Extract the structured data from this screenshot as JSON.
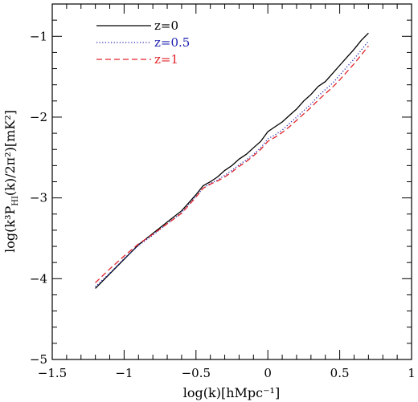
{
  "chart_data": {
    "type": "line",
    "title": "",
    "xlabel": "log(k)[hMpc⁻¹]",
    "ylabel": "log(k³P_HI(k)/2π²)[mK²]",
    "xlim": [
      -1.5,
      1.0
    ],
    "ylim": [
      -5.0,
      -0.6
    ],
    "xticks": [
      -1.5,
      -1.0,
      -0.5,
      0.0,
      0.5,
      1.0
    ],
    "xtick_labels": [
      "−1.5",
      "−1",
      "−0.5",
      "0",
      "0.5",
      "1"
    ],
    "yticks": [
      -5,
      -4,
      -3,
      -2,
      -1
    ],
    "ytick_labels": [
      "−5",
      "−4",
      "−3",
      "−2",
      "−1"
    ],
    "grid": false,
    "legend_position": "top-left",
    "series": [
      {
        "name": "z=0",
        "color": "#000000",
        "style": "solid",
        "x": [
          -1.2,
          -1.1,
          -1.0,
          -0.9,
          -0.8,
          -0.7,
          -0.6,
          -0.55,
          -0.5,
          -0.45,
          -0.4,
          -0.35,
          -0.3,
          -0.25,
          -0.2,
          -0.15,
          -0.1,
          -0.05,
          0.0,
          0.05,
          0.1,
          0.15,
          0.2,
          0.25,
          0.3,
          0.35,
          0.4,
          0.45,
          0.5,
          0.55,
          0.6,
          0.65,
          0.7
        ],
        "y": [
          -4.12,
          -3.94,
          -3.76,
          -3.58,
          -3.44,
          -3.3,
          -3.16,
          -3.06,
          -2.96,
          -2.85,
          -2.8,
          -2.74,
          -2.66,
          -2.6,
          -2.52,
          -2.46,
          -2.38,
          -2.3,
          -2.18,
          -2.12,
          -2.06,
          -1.98,
          -1.9,
          -1.8,
          -1.72,
          -1.62,
          -1.56,
          -1.46,
          -1.36,
          -1.26,
          -1.16,
          -1.05,
          -0.96
        ]
      },
      {
        "name": "z=0.5",
        "color": "#1f24b0",
        "style": "dotted",
        "x": [
          -1.2,
          -1.1,
          -1.0,
          -0.9,
          -0.8,
          -0.7,
          -0.6,
          -0.55,
          -0.5,
          -0.45,
          -0.4,
          -0.35,
          -0.3,
          -0.25,
          -0.2,
          -0.15,
          -0.1,
          -0.05,
          0.0,
          0.05,
          0.1,
          0.15,
          0.2,
          0.25,
          0.3,
          0.35,
          0.4,
          0.45,
          0.5,
          0.55,
          0.6,
          0.65,
          0.7
        ],
        "y": [
          -4.1,
          -3.93,
          -3.75,
          -3.59,
          -3.46,
          -3.32,
          -3.18,
          -3.08,
          -2.98,
          -2.88,
          -2.82,
          -2.78,
          -2.72,
          -2.66,
          -2.59,
          -2.53,
          -2.46,
          -2.38,
          -2.27,
          -2.22,
          -2.16,
          -2.08,
          -2.0,
          -1.92,
          -1.84,
          -1.74,
          -1.66,
          -1.58,
          -1.48,
          -1.38,
          -1.28,
          -1.17,
          -1.06
        ]
      },
      {
        "name": "z=1",
        "color": "#e0242a",
        "style": "dashed",
        "x": [
          -1.2,
          -1.1,
          -1.0,
          -0.9,
          -0.8,
          -0.7,
          -0.6,
          -0.55,
          -0.5,
          -0.45,
          -0.4,
          -0.35,
          -0.3,
          -0.25,
          -0.2,
          -0.15,
          -0.1,
          -0.05,
          0.0,
          0.05,
          0.1,
          0.15,
          0.2,
          0.25,
          0.3,
          0.35,
          0.4,
          0.45,
          0.5,
          0.55,
          0.6,
          0.65,
          0.7
        ],
        "y": [
          -4.05,
          -3.88,
          -3.72,
          -3.57,
          -3.45,
          -3.32,
          -3.19,
          -3.09,
          -2.99,
          -2.88,
          -2.83,
          -2.79,
          -2.74,
          -2.68,
          -2.61,
          -2.55,
          -2.48,
          -2.4,
          -2.3,
          -2.25,
          -2.19,
          -2.12,
          -2.04,
          -1.96,
          -1.88,
          -1.79,
          -1.71,
          -1.63,
          -1.54,
          -1.44,
          -1.34,
          -1.23,
          -1.12
        ]
      }
    ]
  }
}
